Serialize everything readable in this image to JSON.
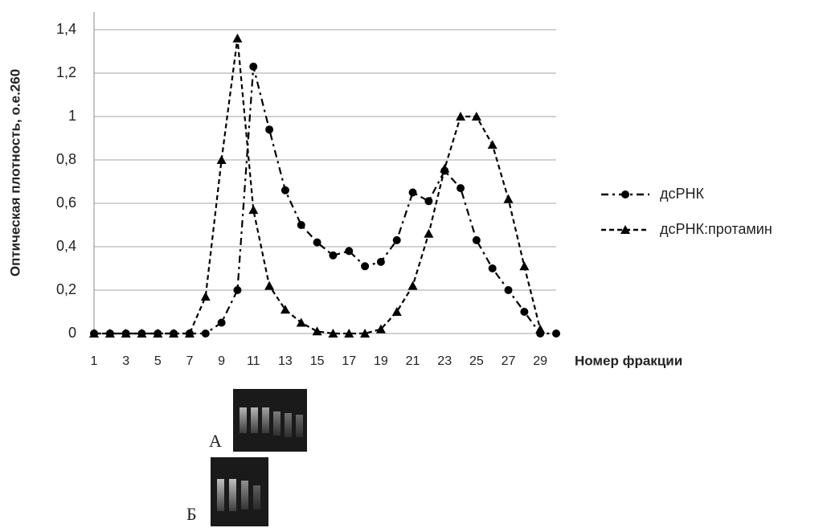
{
  "chart_data": {
    "type": "line",
    "y_label": "Оптическая плотность, о.е.260",
    "x_label": "Номер фракции",
    "x": [
      1,
      2,
      3,
      4,
      5,
      6,
      7,
      8,
      9,
      10,
      11,
      12,
      13,
      14,
      15,
      16,
      17,
      18,
      19,
      20,
      21,
      22,
      23,
      24,
      25,
      26,
      27,
      28,
      29,
      30
    ],
    "xlim": [
      1,
      30
    ],
    "xticks": [
      1,
      3,
      5,
      7,
      9,
      11,
      13,
      15,
      17,
      19,
      21,
      23,
      25,
      27,
      29
    ],
    "ylim": [
      0,
      1.5
    ],
    "yticks": [
      0,
      {
        "value": 0.2,
        "label": "0,2"
      },
      {
        "value": 0.4,
        "label": "0,4"
      },
      {
        "value": 0.6,
        "label": "0,6"
      },
      {
        "value": 0.8,
        "label": "0,8"
      },
      1,
      {
        "value": 1.2,
        "label": "1,2"
      },
      {
        "value": 1.4,
        "label": "1,4"
      }
    ],
    "grid": true,
    "series": [
      {
        "name": "дсРНК",
        "color": "#000000",
        "marker": "circle",
        "dash": "dash-dot",
        "values": [
          0,
          0,
          0,
          0,
          0,
          0,
          0,
          0,
          0.05,
          0.2,
          1.23,
          0.94,
          0.66,
          0.5,
          0.42,
          0.36,
          0.38,
          0.31,
          0.33,
          0.43,
          0.65,
          0.61,
          0.75,
          0.67,
          0.43,
          0.3,
          0.2,
          0.1,
          0,
          0
        ]
      },
      {
        "name": "дсРНК:протамин",
        "color": "#000000",
        "marker": "triangle",
        "dash": "dash",
        "values": [
          0,
          0,
          0,
          0,
          0,
          0,
          0,
          0.17,
          0.8,
          1.36,
          0.57,
          0.22,
          0.11,
          0.05,
          0.01,
          0,
          0,
          0,
          0.02,
          0.1,
          0.22,
          0.46,
          0.76,
          1.0,
          1.0,
          0.87,
          0.62,
          0.31,
          0.02,
          null
        ]
      }
    ],
    "gel_labels": [
      "А",
      "Б"
    ]
  }
}
